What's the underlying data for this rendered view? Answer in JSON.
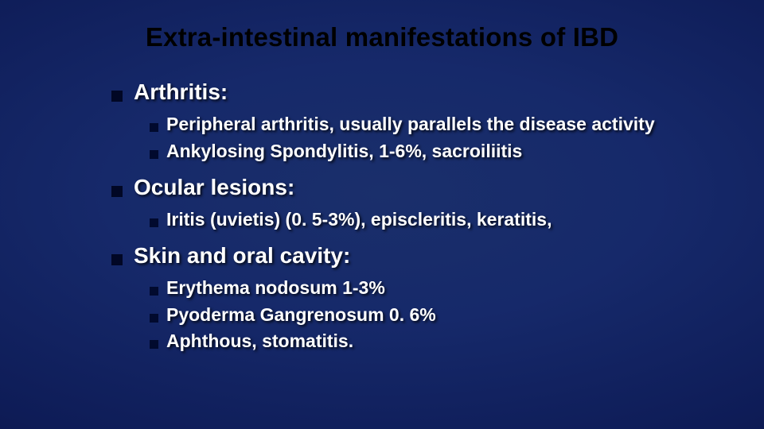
{
  "slide": {
    "title": "Extra-intestinal manifestations of IBD",
    "background_center": "#1a2f6b",
    "background_edge": "#060d33",
    "title_color": "#000000",
    "text_color": "#ffffff",
    "bullet_color": "#010725",
    "title_fontsize": 33,
    "heading_fontsize": 28,
    "sub_fontsize": 23,
    "sections": [
      {
        "heading": "Arthritis:",
        "items": [
          "Peripheral arthritis, usually parallels the disease activity",
          "Ankylosing Spondylitis, 1-6%, sacroiliitis"
        ]
      },
      {
        "heading": "Ocular lesions:",
        "items": [
          "Iritis (uvietis) (0. 5-3%), episcleritis, keratitis,"
        ]
      },
      {
        "heading": "Skin and oral cavity:",
        "items": [
          "Erythema nodosum 1-3%",
          "Pyoderma Gangrenosum 0. 6%",
          "Aphthous, stomatitis."
        ]
      }
    ]
  }
}
